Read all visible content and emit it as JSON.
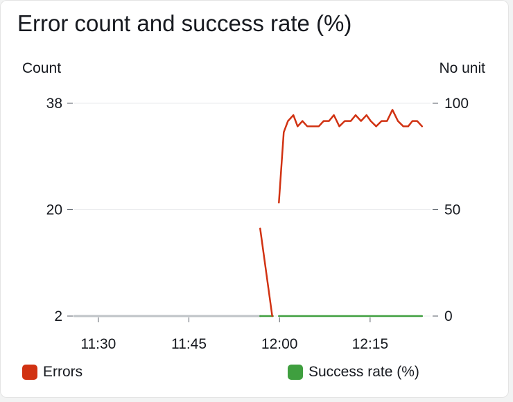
{
  "chart_data": {
    "type": "line",
    "title": "Error count and success rate (%)",
    "left_axis": {
      "label": "Count",
      "ticks": [
        "38",
        "20",
        "2"
      ],
      "ylim": [
        2,
        38
      ]
    },
    "right_axis": {
      "label": "No unit",
      "ticks": [
        "100",
        "50",
        "0"
      ],
      "ylim": [
        0,
        100
      ]
    },
    "x_ticks": [
      "11:30",
      "11:45",
      "12:00",
      "12:15"
    ],
    "x_tick_minutes": [
      690,
      705,
      720,
      735
    ],
    "x_range_minutes": [
      686,
      745
    ],
    "grid": true,
    "legend_position": "bottom",
    "series": [
      {
        "name": "Errors",
        "axis": "left",
        "color": "#d13212",
        "segments": [
          {
            "x": [
              716.8,
              718.8
            ],
            "y": [
              16.8,
              2
            ]
          },
          {
            "x": [
              719.9,
              720.7,
              721.4,
              722.3,
              723.0,
              723.8,
              724.6,
              725.6,
              726.5,
              727.3,
              728.2,
              729.0,
              729.9,
              730.8,
              731.8,
              732.6,
              733.5,
              734.4,
              735.1,
              736.0,
              736.9,
              737.8,
              738.7,
              739.6,
              740.5,
              741.3,
              742.0,
              742.8,
              743.6
            ],
            "y": [
              21.2,
              33.1,
              35.0,
              36.0,
              34.1,
              35.0,
              34.1,
              34.1,
              34.1,
              35.0,
              35.0,
              36.0,
              34.1,
              35.0,
              35.0,
              36.0,
              35.0,
              36.0,
              35.0,
              34.1,
              35.0,
              35.0,
              36.9,
              35.0,
              34.1,
              34.1,
              35.0,
              35.0,
              34.1
            ]
          }
        ]
      },
      {
        "name": "Success rate (%)",
        "axis": "right",
        "color": "#3f9f3f",
        "segments": [
          {
            "x": [
              716.8,
              718.9
            ],
            "y": [
              0,
              0
            ]
          },
          {
            "x": [
              719.9,
              743.6
            ],
            "y": [
              0,
              0
            ]
          }
        ]
      },
      {
        "name": "",
        "axis": "right",
        "color": "#bfc3c7",
        "segments": [
          {
            "x": [
              686.0,
              716.8
            ],
            "y": [
              0,
              0
            ]
          }
        ]
      }
    ]
  }
}
